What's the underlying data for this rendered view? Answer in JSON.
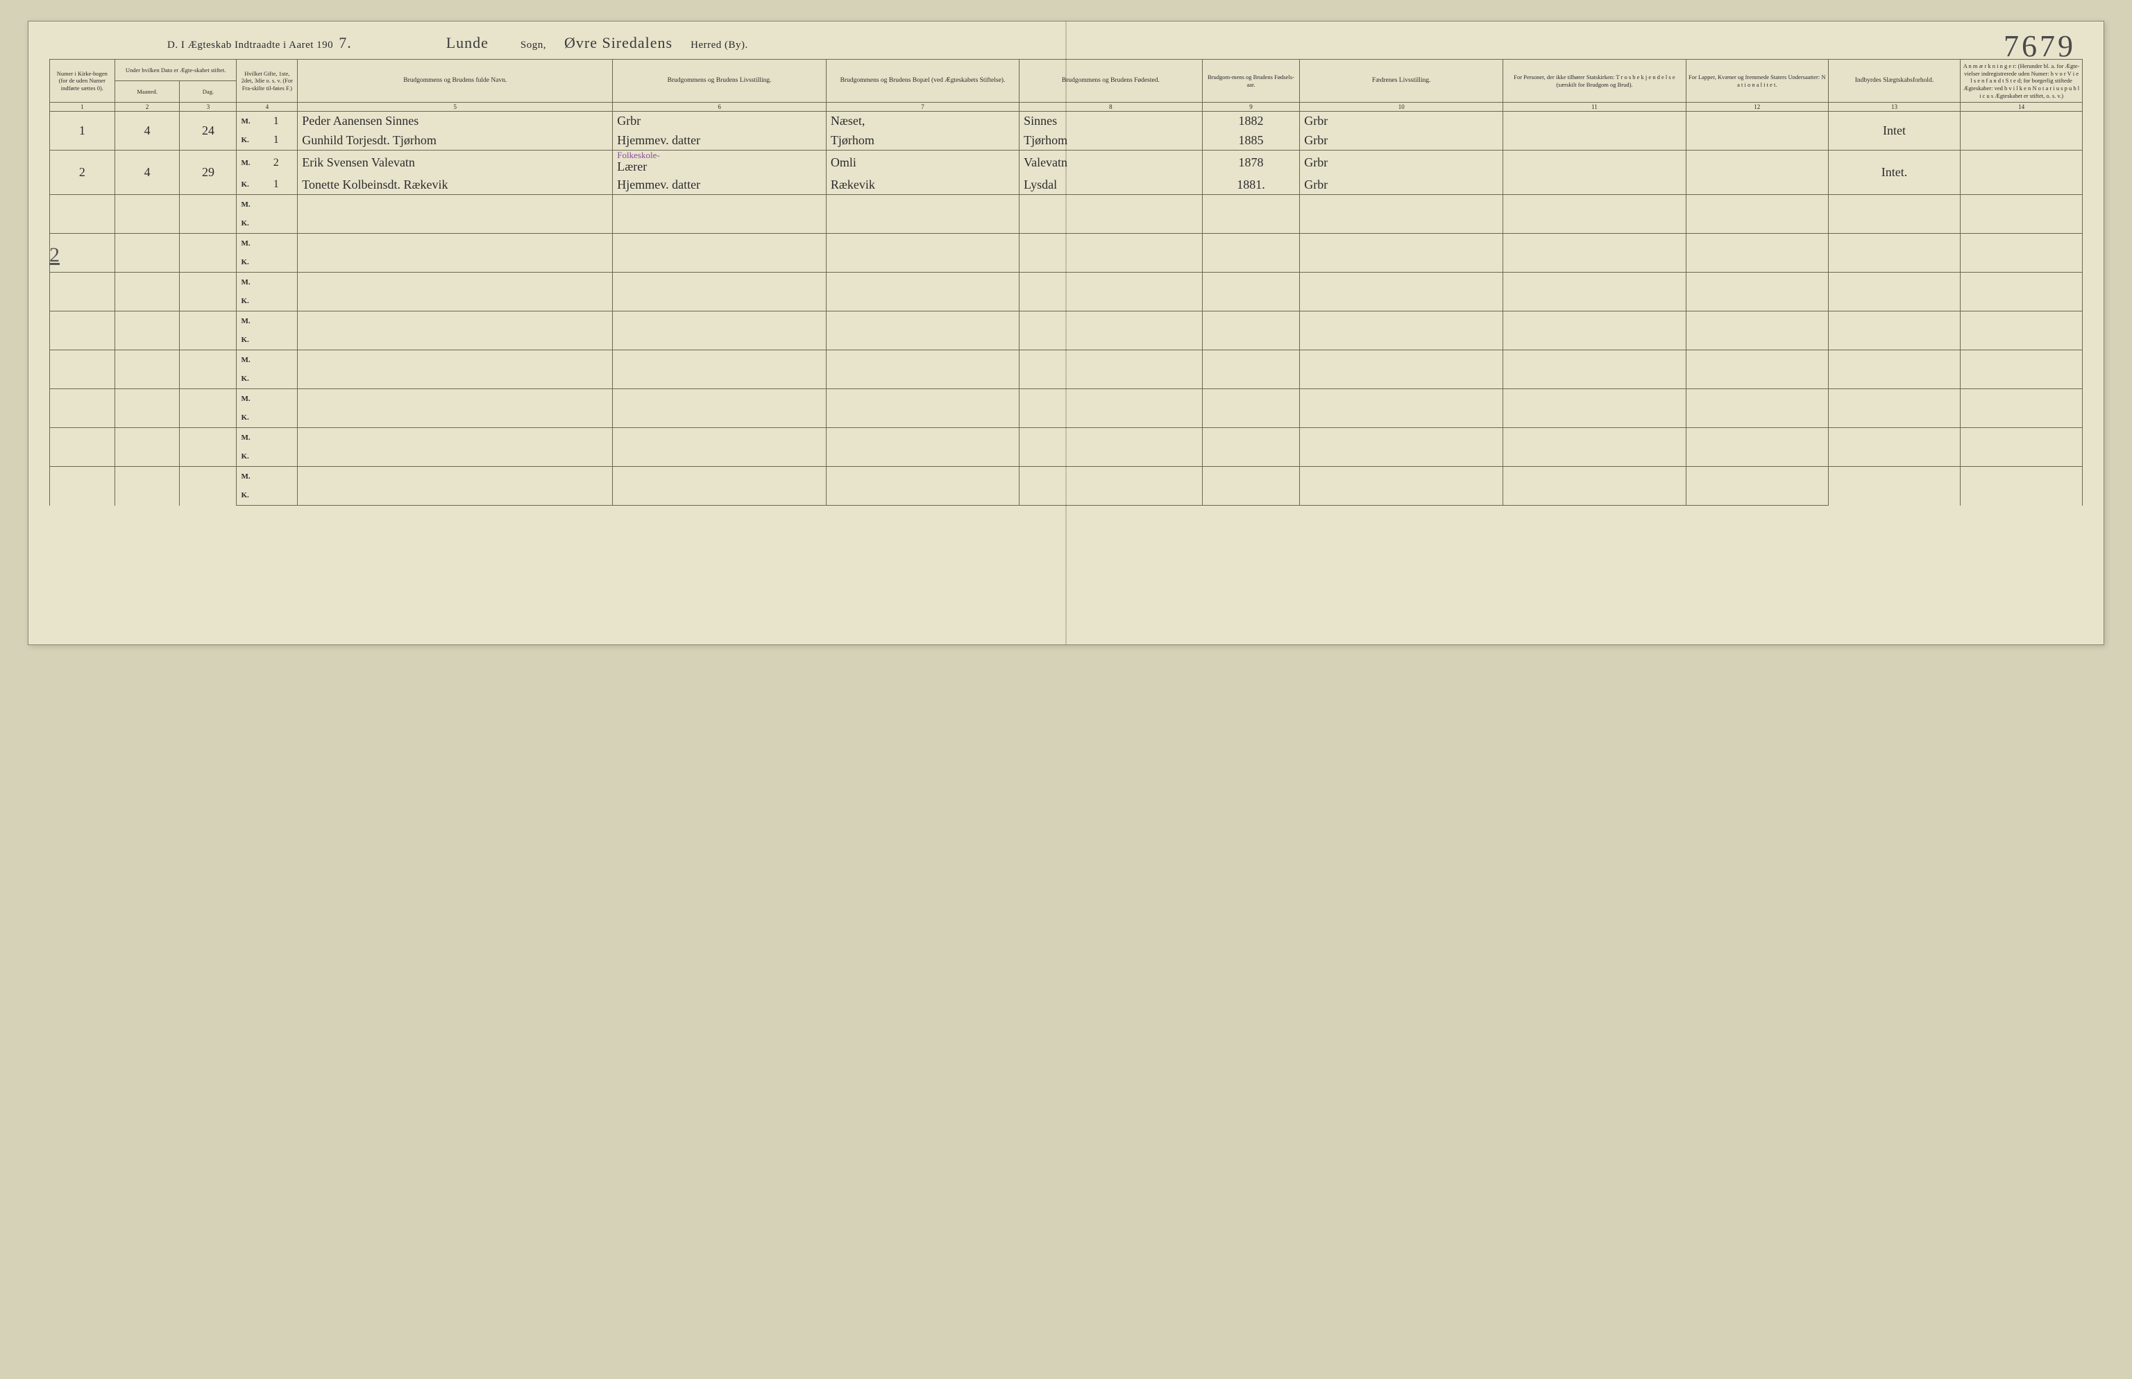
{
  "header": {
    "title_prefix": "D.  I Ægteskab Indtraadte i Aaret 190",
    "year_suffix": "7.",
    "sogn_value": "Lunde",
    "sogn_label": "Sogn,",
    "herred_value": "Øvre Siredalens",
    "herred_label": "Herred (By).",
    "page_number": "7679",
    "margin_annotation": "2"
  },
  "columns": {
    "c1": "Numer i Kirke-bogen (for de uden Numer indførte sættes 0).",
    "c2_top": "Under hvilken Dato er Ægte-skabet stiftet.",
    "c2a": "Maaned.",
    "c2b": "Dag.",
    "c4": "Hvilket Gifte, 1ste, 2det, 3die o. s. v. (For Fra-skilte til-føies F.)",
    "c5": "Brudgommens og Brudens fulde Navn.",
    "c6": "Brudgommens og Brudens Livsstilling.",
    "c7": "Brudgommens og Brudens Bopæl (ved Ægteskabets Stiftelse).",
    "c8": "Brudgommens og Brudens Fødested.",
    "c9": "Brudgom-mens og Brudens Fødsels-aar.",
    "c10": "Fædrenes Livsstilling.",
    "c11": "For Personer, der ikke tilhører Statskirken: T r o s b e k j e n d e l s e (særskilt for Brudgom og Brud).",
    "c12": "For Lapper, Kvæner og fremmede Staters Undersaatter: N a t i o n a l i t e t.",
    "c13": "Indbyrdes Slægtskabsforhold.",
    "c14": "A n m æ r k n i n g e r: (Herunder bl. a. for Ægte-vielser indregistrerede uden Numer: h v o r  V i e l s e n f a n d t S t e d; for borgerlig stiftede Ægteskaber: ved h v i l k e n  N o t a r i u s p u b l i c u s Ægteskabet er stiftet, o. s. v.)",
    "nums": [
      "1",
      "2",
      "3",
      "4",
      "5",
      "6",
      "7",
      "8",
      "9",
      "10",
      "11",
      "12",
      "13",
      "14"
    ]
  },
  "mk": {
    "M": "M.",
    "K": "K."
  },
  "rows": [
    {
      "num": "1",
      "maaned": "4",
      "dag": "24",
      "m": {
        "gifte": "1",
        "navn": "Peder Aanensen Sinnes",
        "livs": "Grbr",
        "bopael": "Næset,",
        "fodested": "Sinnes",
        "aar": "1882",
        "faedre": "Grbr"
      },
      "k": {
        "gifte": "1",
        "navn": "Gunhild Torjesdt. Tjørhom",
        "livs": "Hjemmev. datter",
        "bopael": "Tjørhom",
        "fodested": "Tjørhom",
        "aar": "1885",
        "faedre": "Grbr"
      },
      "slaegt": "Intet"
    },
    {
      "num": "2",
      "maaned": "4",
      "dag": "29",
      "m": {
        "gifte": "2",
        "navn": "Erik Svensen Valevatn",
        "livs_note": "Folkeskole-",
        "livs": "Lærer",
        "bopael": "Omli",
        "fodested": "Valevatn",
        "aar": "1878",
        "faedre": "Grbr"
      },
      "k": {
        "gifte": "1",
        "navn": "Tonette Kolbeinsdt. Rækevik",
        "livs": "Hjemmev. datter",
        "bopael": "Rækevik",
        "fodested": "Lysdal",
        "aar": "1881.",
        "faedre": "Grbr"
      },
      "slaegt": "Intet."
    }
  ],
  "layout": {
    "col_widths_pct": [
      3.2,
      3.2,
      2.8,
      1.6,
      1.4,
      15.5,
      10.5,
      9.5,
      9,
      4.8,
      10,
      9,
      7,
      6.5,
      6
    ],
    "blank_pairs": 8
  },
  "colors": {
    "paper": "#e8e4cc",
    "line": "#6b6650",
    "ink": "#2b2b2b",
    "violet": "#8a4a9a"
  }
}
